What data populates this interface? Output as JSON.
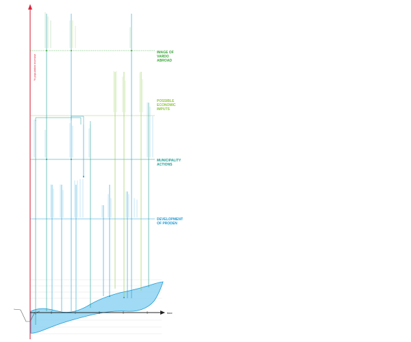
{
  "axis": {
    "y_title": "% population increase",
    "x_title": "time",
    "colors": {
      "y_axis": "#d7263d",
      "x_axis": "#222222"
    }
  },
  "y_ticks": [
    "",
    "",
    "",
    "",
    "",
    ""
  ],
  "left_labels": [
    {
      "text": "",
      "color": "#777777"
    },
    {
      "text": "",
      "color": "#555555"
    },
    {
      "text": "",
      "color": "#555555"
    },
    {
      "text": "",
      "color": "#555555"
    }
  ],
  "categories": [
    {
      "key": "image",
      "lines": [
        "IMAGE OF",
        "VARDO",
        "ABROAD"
      ],
      "color": "#3aa63a"
    },
    {
      "key": "economic",
      "lines": [
        "POSSIBLE",
        "ECONOMIC",
        "IMPUTS"
      ],
      "color": "#8cc63e"
    },
    {
      "key": "municipality",
      "lines": [
        "MUNICIPALITY",
        "ACTIONS"
      ],
      "color": "#1d9b93"
    },
    {
      "key": "development",
      "lines": [
        "DEVELOPMENT",
        "OF PRODEN"
      ],
      "color": "#1c9ad6"
    }
  ],
  "colors": {
    "image": "#3aa63a",
    "economic": "#8cc63e",
    "municipality": "#1d9b93",
    "development": "#1c9ad6",
    "area_fill": "#8fd3f2",
    "area_stroke": "#1c9ad6",
    "grid": "#dddddd"
  },
  "events": [
    {
      "id": "e1",
      "color": "#3aa63a",
      "texts": [
        "",
        ""
      ]
    },
    {
      "id": "e2",
      "color": "#1c9ad6",
      "texts": [
        ""
      ]
    },
    {
      "id": "e3",
      "color": "#3aa63a",
      "texts": [
        "",
        ""
      ]
    },
    {
      "id": "e4",
      "color": "#3aa63a",
      "texts": [
        ""
      ]
    },
    {
      "id": "e5",
      "color": "#8cc63e",
      "texts": [
        ""
      ]
    },
    {
      "id": "e6",
      "color": "#8cc63e",
      "texts": [
        ""
      ]
    },
    {
      "id": "e7",
      "color": "#1c9ad6",
      "texts": [
        ""
      ]
    }
  ]
}
